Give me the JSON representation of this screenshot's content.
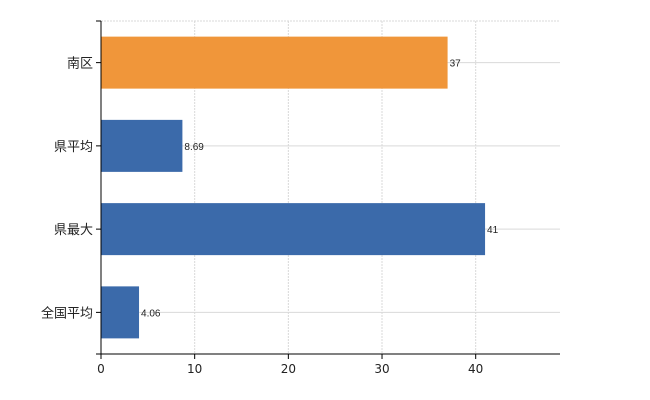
{
  "chart_data": {
    "type": "bar",
    "orientation": "horizontal",
    "categories": [
      "南区",
      "県平均",
      "県最大",
      "全国平均"
    ],
    "values": [
      37,
      8.69,
      41,
      4.06
    ],
    "data_labels": [
      "37",
      "8.69",
      "41",
      "4.06"
    ],
    "bar_colors": [
      "#f0963a",
      "#3b6aaa",
      "#3b6aaa",
      "#3b6aaa"
    ],
    "xlim": [
      0,
      49
    ],
    "xticks": [
      0,
      10,
      20,
      30,
      40
    ],
    "grid": true,
    "title": "",
    "xlabel": "",
    "ylabel": ""
  }
}
